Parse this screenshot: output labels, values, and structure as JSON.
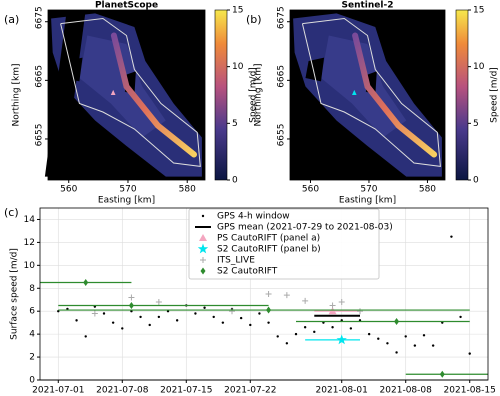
{
  "chart_data": [
    {
      "type": "image",
      "panel_label": "(a)",
      "title": "PlanetScope",
      "xlabel": "Easting [km]",
      "ylabel": "Northing [km]",
      "xlim": [
        556.5,
        583
      ],
      "xticks": [
        560,
        570,
        580
      ],
      "ylim": [
        6648,
        6677
      ],
      "yticks": [
        6655,
        6665,
        6675
      ],
      "colorbar_label": "Speed [m/d]",
      "clim": [
        0,
        15
      ],
      "cticks": [
        0,
        5,
        10,
        15
      ]
    },
    {
      "type": "image",
      "panel_label": "(b)",
      "title": "Sentinel-2",
      "xlabel": "Easting [km]",
      "ylabel": "Northing [km]",
      "xlim": [
        556.5,
        583
      ],
      "xticks": [
        560,
        570,
        580
      ],
      "ylim": [
        6648,
        6677
      ],
      "yticks": [
        6655,
        6665,
        6675
      ],
      "colorbar_label": "Speed [m/d]",
      "clim": [
        0,
        15
      ],
      "cticks": [
        0,
        5,
        10,
        15
      ]
    },
    {
      "type": "line",
      "panel_label": "(c)",
      "ylabel": "Surface speed [m/d]",
      "xlim": [
        "2021-06-29",
        "2021-08-17"
      ],
      "xticks": [
        "2021-07-01",
        "2021-07-08",
        "2021-07-15",
        "2021-07-22",
        "2021-08-01",
        "2021-08-08",
        "2021-08-15"
      ],
      "ylim": [
        0,
        15
      ],
      "yticks": [
        0,
        2,
        4,
        6,
        8,
        10,
        12,
        14
      ],
      "grid": true,
      "legend": "upper center",
      "series": [
        {
          "name": "GPS 4-h window",
          "color": "#000000",
          "marker": "dot",
          "x": [
            "2021-07-01",
            "2021-07-02",
            "2021-07-03",
            "2021-07-04",
            "2021-07-05",
            "2021-07-06",
            "2021-07-07",
            "2021-07-08",
            "2021-07-09",
            "2021-07-10",
            "2021-07-11",
            "2021-07-12",
            "2021-07-13",
            "2021-07-14",
            "2021-07-15",
            "2021-07-16",
            "2021-07-17",
            "2021-07-18",
            "2021-07-19",
            "2021-07-20",
            "2021-07-21",
            "2021-07-22",
            "2021-07-23",
            "2021-07-24",
            "2021-07-25",
            "2021-07-26",
            "2021-07-27",
            "2021-07-28",
            "2021-07-29",
            "2021-07-30",
            "2021-07-31",
            "2021-08-01",
            "2021-08-02",
            "2021-08-03",
            "2021-08-04",
            "2021-08-05",
            "2021-08-06",
            "2021-08-07",
            "2021-08-08",
            "2021-08-09",
            "2021-08-10",
            "2021-08-11",
            "2021-08-12",
            "2021-08-13",
            "2021-08-14",
            "2021-08-15"
          ],
          "values": [
            6.0,
            6.2,
            5.2,
            3.8,
            6.4,
            5.8,
            5.0,
            4.5,
            6.0,
            5.5,
            4.8,
            5.5,
            6.0,
            5.2,
            6.5,
            5.8,
            6.3,
            5.5,
            5.0,
            6.2,
            5.4,
            4.8,
            5.8,
            5.0,
            3.8,
            3.2,
            4.0,
            4.6,
            4.2,
            5.0,
            4.6,
            5.2,
            4.5,
            5.2,
            4.0,
            3.6,
            3.2,
            2.4,
            3.8,
            3.0,
            3.9,
            3.0,
            5.0,
            12.5,
            5.5,
            2.3
          ]
        },
        {
          "name": "GPS mean (2021-07-29 to 2021-08-03)",
          "color": "#000000",
          "marker": "line",
          "x": [
            "2021-07-29",
            "2021-08-03"
          ],
          "values": [
            5.6,
            5.6
          ]
        },
        {
          "name": "PS CautoRIFT (panel a)",
          "color": "#f4a6c0",
          "marker": "triangle",
          "x": [
            "2021-07-31"
          ],
          "x_start": [
            "2021-07-29"
          ],
          "x_end": [
            "2021-08-03"
          ],
          "values": [
            6.0
          ]
        },
        {
          "name": "S2 CautoRIFT (panel b)",
          "color": "#00e5ee",
          "marker": "star",
          "x": [
            "2021-08-01"
          ],
          "x_start": [
            "2021-07-28"
          ],
          "x_end": [
            "2021-08-03"
          ],
          "values": [
            3.5
          ]
        },
        {
          "name": "ITS_LIVE",
          "color": "#aaaaaa",
          "marker": "plus",
          "x": [
            "2021-07-05",
            "2021-07-09",
            "2021-07-12",
            "2021-07-20",
            "2021-07-24",
            "2021-07-26",
            "2021-07-28",
            "2021-07-31",
            "2021-08-01",
            "2021-08-03"
          ],
          "values": [
            5.8,
            7.2,
            6.8,
            6.0,
            7.5,
            7.4,
            6.9,
            6.5,
            6.8,
            6.0
          ]
        },
        {
          "name": "S2 CautoRIFT",
          "color": "#2e8b2e",
          "marker": "diamond",
          "x": [
            "2021-07-04",
            "2021-07-09",
            "2021-07-24",
            "2021-08-07",
            "2021-08-12"
          ],
          "x_start": [
            "2021-06-29",
            "2021-07-01",
            "2021-07-01",
            "2021-07-27",
            "2021-08-08"
          ],
          "x_end": [
            "2021-07-09",
            "2021-07-24",
            "2021-08-15",
            "2021-08-15",
            "2021-08-17"
          ],
          "values": [
            8.5,
            6.5,
            6.1,
            5.1,
            0.5
          ]
        }
      ]
    }
  ]
}
